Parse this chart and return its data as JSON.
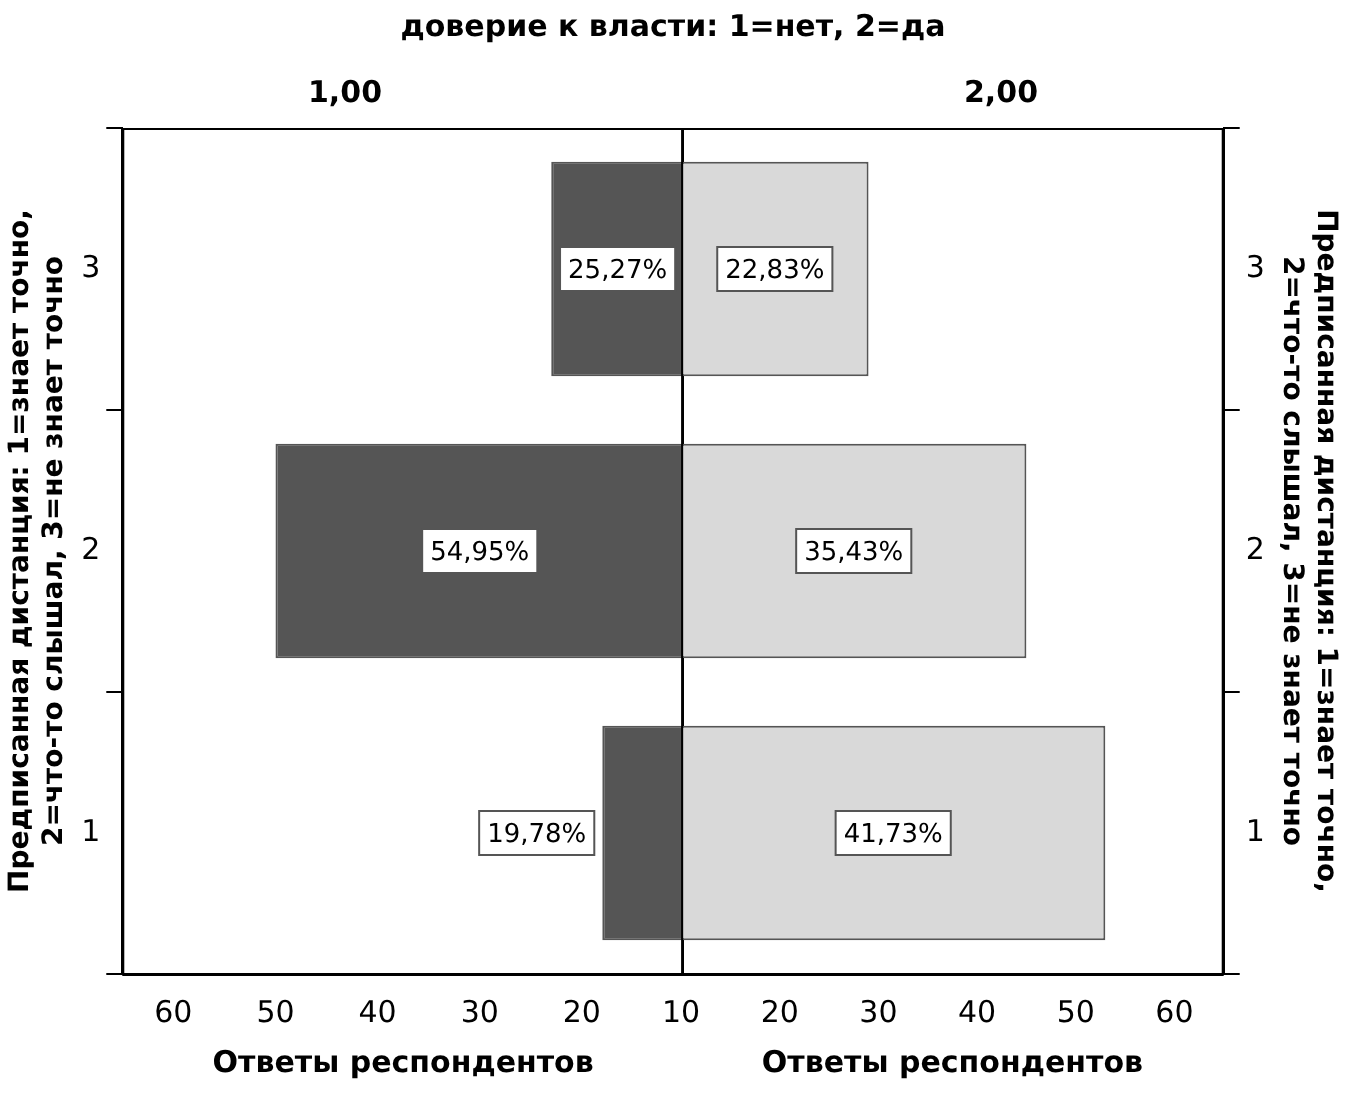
{
  "chart_data": [
    {
      "type": "bar",
      "orientation": "horizontal",
      "title": "доверие к власти: 1=нет, 2=да",
      "subtitle": "1,00",
      "xlabel": "Ответы респондентов",
      "ylabel": "Предписанная дистанция: 1=знает точно, 2=что-то слышал, 3=не знает точно",
      "categories": [
        "3",
        "2",
        "1"
      ],
      "base": [
        10,
        10,
        10
      ],
      "values": [
        13,
        40,
        8
      ],
      "color": "#555555",
      "xlim": [
        65,
        10
      ],
      "xticks": [
        60,
        50,
        40,
        30,
        20,
        {
          "value": 10,
          "label": null
        }
      ],
      "grid": false,
      "legend": false,
      "annotations": [
        "25,27%",
        "54,95%",
        "19,78%"
      ]
    },
    {
      "type": "bar",
      "orientation": "horizontal",
      "subtitle": "2,00",
      "xlabel": "Ответы респондентов",
      "ylabel": "Предписанная дистанция: 1=знает точно, 2=что-то слышал, 3=не знает точно",
      "categories": [
        "3",
        "2",
        "1"
      ],
      "base": [
        10,
        10,
        10
      ],
      "values": [
        19,
        35,
        43
      ],
      "color": "#d9d9d9",
      "xlim": [
        10,
        65
      ],
      "xticks": [
        10,
        20,
        30,
        40,
        50,
        60
      ],
      "grid": false,
      "legend": false,
      "annotations": [
        "22,83%",
        "35,43%",
        "41,73%"
      ]
    }
  ]
}
